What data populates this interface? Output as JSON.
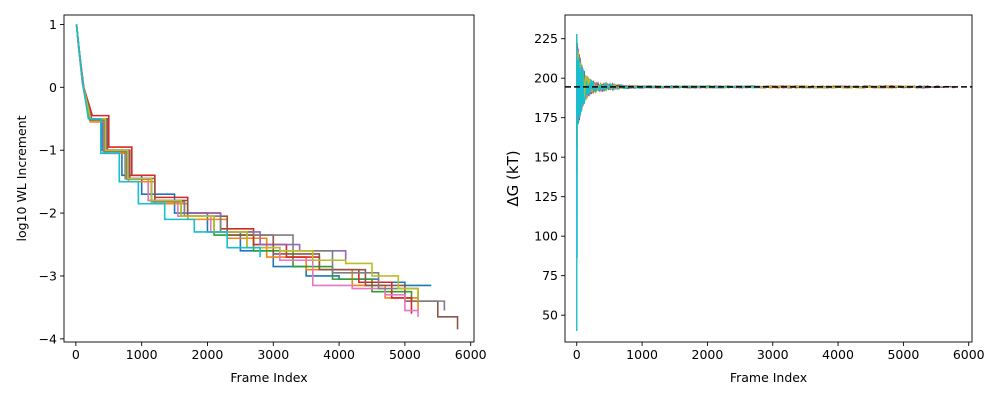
{
  "palette": [
    "#1f77b4",
    "#ff7f0e",
    "#2ca02c",
    "#d62728",
    "#9467bd",
    "#8c564b",
    "#e377c2",
    "#7f7f7f",
    "#bcbd22",
    "#17becf"
  ],
  "chart_data": [
    {
      "type": "line",
      "xlabel": "Frame Index",
      "ylabel": "log10 WL Increment",
      "xlim": [
        -180,
        6050
      ],
      "ylim": [
        -4.05,
        1.15
      ],
      "xticks": [
        0,
        1000,
        2000,
        3000,
        4000,
        5000,
        6000
      ],
      "yticks": [
        1,
        0,
        -1,
        -2,
        -3,
        -4
      ],
      "grid": false,
      "series": [
        {
          "color": "#1f77b4",
          "x": [
            10,
            40,
            100,
            200,
            400,
            700,
            1000,
            1500,
            2000,
            2500,
            3000,
            3500,
            4000,
            4600,
            5000,
            5400
          ],
          "y": [
            1.0,
            0.7,
            0.1,
            -0.5,
            -1.0,
            -1.4,
            -1.7,
            -2.0,
            -2.3,
            -2.6,
            -2.85,
            -3.0,
            -3.05,
            -3.1,
            -3.15,
            -3.15
          ]
        },
        {
          "color": "#ff7f0e",
          "x": [
            10,
            45,
            110,
            220,
            450,
            800,
            1200,
            1700,
            2300,
            2900,
            3500,
            4200,
            4700,
            5200
          ],
          "y": [
            1.0,
            0.65,
            0.05,
            -0.55,
            -1.05,
            -1.5,
            -1.85,
            -2.1,
            -2.4,
            -2.7,
            -2.9,
            -3.15,
            -3.35,
            -3.55
          ]
        },
        {
          "color": "#2ca02c",
          "x": [
            10,
            40,
            100,
            210,
            420,
            750,
            1100,
            1600,
            2100,
            2700,
            3300,
            3900,
            4500,
            5100
          ],
          "y": [
            1.0,
            0.68,
            0.08,
            -0.52,
            -1.02,
            -1.45,
            -1.8,
            -2.05,
            -2.35,
            -2.6,
            -2.85,
            -3.05,
            -3.25,
            -3.4
          ]
        },
        {
          "color": "#d62728",
          "x": [
            10,
            50,
            120,
            250,
            500,
            850,
            1200,
            1700,
            2200,
            2700,
            3200,
            3700,
            4300,
            4800,
            5100
          ],
          "y": [
            1.0,
            0.6,
            0.0,
            -0.45,
            -0.95,
            -1.4,
            -1.75,
            -2.0,
            -2.25,
            -2.5,
            -2.7,
            -2.9,
            -3.1,
            -3.35,
            -3.6
          ]
        },
        {
          "color": "#9467bd",
          "x": [
            10,
            45,
            110,
            230,
            460,
            800,
            1150,
            1650,
            2200,
            2800,
            3400,
            3800,
            4100
          ],
          "y": [
            1.0,
            0.62,
            0.02,
            -0.5,
            -1.0,
            -1.45,
            -1.8,
            -2.0,
            -2.3,
            -2.5,
            -2.6,
            -2.6,
            -2.75
          ]
        },
        {
          "color": "#8c564b",
          "x": [
            10,
            45,
            120,
            240,
            480,
            820,
            1200,
            1700,
            2300,
            3000,
            3700,
            4400,
            5000,
            5500,
            5800
          ],
          "y": [
            1.0,
            0.6,
            0.0,
            -0.5,
            -1.0,
            -1.45,
            -1.8,
            -2.05,
            -2.35,
            -2.65,
            -2.9,
            -3.15,
            -3.4,
            -3.65,
            -3.85
          ]
        },
        {
          "color": "#e377c2",
          "x": [
            10,
            40,
            100,
            200,
            420,
            760,
            1100,
            1550,
            2050,
            2600,
            3100,
            3600,
            4200,
            4700,
            5000,
            5200
          ],
          "y": [
            1.0,
            0.66,
            0.06,
            -0.5,
            -1.0,
            -1.45,
            -1.8,
            -2.05,
            -2.3,
            -2.55,
            -2.75,
            -3.15,
            -3.2,
            -3.3,
            -3.55,
            -3.65
          ]
        },
        {
          "color": "#7f7f7f",
          "x": [
            10,
            40,
            105,
            215,
            430,
            770,
            1150,
            1650,
            2200,
            2700,
            2900,
            3300,
            3900,
            4600,
            5200,
            5600
          ],
          "y": [
            1.0,
            0.66,
            0.06,
            -0.52,
            -1.02,
            -1.46,
            -1.82,
            -2.05,
            -2.3,
            -2.35,
            -2.35,
            -2.6,
            -2.95,
            -3.2,
            -3.4,
            -3.55
          ]
        },
        {
          "color": "#bcbd22",
          "x": [
            10,
            45,
            110,
            225,
            450,
            790,
            1150,
            1600,
            2100,
            2600,
            3100,
            3600,
            4100,
            4500,
            4900,
            5200
          ],
          "y": [
            1.0,
            0.63,
            0.03,
            -0.5,
            -1.0,
            -1.45,
            -1.8,
            -2.05,
            -2.3,
            -2.55,
            -2.6,
            -2.75,
            -2.8,
            -3.0,
            -3.2,
            -3.4
          ]
        },
        {
          "color": "#17becf",
          "x": [
            10,
            40,
            100,
            190,
            380,
            660,
            950,
            1350,
            1800,
            2300,
            2800
          ],
          "y": [
            1.0,
            0.7,
            0.1,
            -0.5,
            -1.05,
            -1.5,
            -1.85,
            -2.1,
            -2.3,
            -2.55,
            -2.7
          ]
        }
      ]
    },
    {
      "type": "line",
      "xlabel": "Frame Index",
      "ylabel": "ΔG (kT)",
      "xlim": [
        -180,
        6050
      ],
      "ylim": [
        33,
        240
      ],
      "xticks": [
        0,
        1000,
        2000,
        3000,
        4000,
        5000,
        6000
      ],
      "yticks": [
        225,
        200,
        175,
        150,
        125,
        100,
        75,
        50
      ],
      "grid": false,
      "reference_line": {
        "y": 194.5,
        "style": "dashed",
        "color": "#000000"
      },
      "converge_value": 194.5,
      "start_values": [
        160,
        140,
        175,
        180,
        185,
        178,
        200,
        210,
        172,
        40
      ],
      "series_end_frames": [
        5400,
        5200,
        5100,
        5100,
        4100,
        5800,
        5200,
        5600,
        5200,
        2800
      ]
    }
  ]
}
